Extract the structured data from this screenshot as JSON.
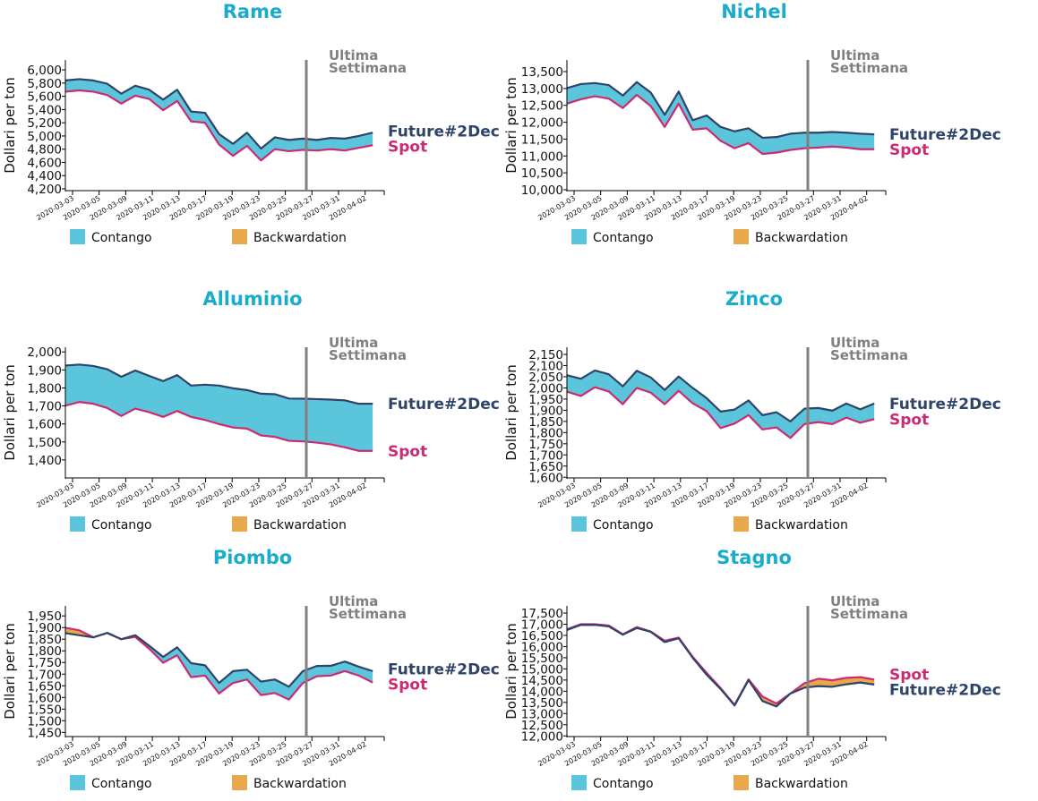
{
  "chart_data": [
    {
      "type": "area",
      "title": "Rame",
      "ylabel": "Dollari per ton",
      "ylim": [
        4173,
        6150
      ],
      "yticks": {
        "from": 4200,
        "to": 6000,
        "step": 200
      },
      "future": [
        5840,
        5860,
        5840,
        5790,
        5640,
        5760,
        5700,
        5550,
        5700,
        5370,
        5350,
        5030,
        4880,
        5050,
        4810,
        4980,
        4940,
        4960,
        4940,
        4970,
        4960,
        5000,
        5050
      ],
      "spot": [
        5670,
        5690,
        5670,
        5620,
        5490,
        5610,
        5560,
        5390,
        5530,
        5220,
        5200,
        4870,
        4700,
        4850,
        4630,
        4800,
        4770,
        4790,
        4780,
        4800,
        4780,
        4820,
        4860
      ]
    },
    {
      "type": "area",
      "title": "Nichel",
      "ylabel": "Dollari per ton",
      "ylim": [
        9973,
        13845
      ],
      "yticks": {
        "from": 10000,
        "to": 13500,
        "step": 500
      },
      "future": [
        13010,
        13130,
        13160,
        13100,
        12790,
        13190,
        12880,
        12220,
        12910,
        12060,
        12200,
        11860,
        11730,
        11820,
        11540,
        11560,
        11660,
        11690,
        11690,
        11710,
        11690,
        11660,
        11640
      ],
      "spot": [
        12550,
        12680,
        12770,
        12700,
        12420,
        12810,
        12480,
        11860,
        12550,
        11780,
        11820,
        11450,
        11230,
        11380,
        11060,
        11100,
        11180,
        11230,
        11250,
        11280,
        11250,
        11200,
        11200
      ]
    },
    {
      "type": "area",
      "title": "Alluminio",
      "ylabel": "Dollari per ton",
      "ylim": [
        1300,
        2026
      ],
      "yticks": {
        "from": 1400,
        "to": 2000,
        "step": 100
      },
      "future": [
        1924,
        1930,
        1922,
        1904,
        1862,
        1897,
        1867,
        1838,
        1871,
        1813,
        1818,
        1813,
        1798,
        1788,
        1768,
        1765,
        1741,
        1740,
        1738,
        1735,
        1731,
        1712,
        1712
      ],
      "spot": [
        1702,
        1722,
        1712,
        1688,
        1644,
        1685,
        1665,
        1639,
        1672,
        1639,
        1622,
        1599,
        1580,
        1574,
        1536,
        1528,
        1506,
        1503,
        1496,
        1486,
        1470,
        1450,
        1450
      ]
    },
    {
      "type": "area",
      "title": "Zinco",
      "ylabel": "Dollari per ton",
      "ylim": [
        1597,
        2182
      ],
      "yticks": {
        "from": 1600,
        "to": 2150,
        "step": 50
      },
      "future": [
        2057,
        2041,
        2078,
        2061,
        2007,
        2077,
        2047,
        1991,
        2051,
        2000,
        1954,
        1894,
        1903,
        1944,
        1878,
        1891,
        1850,
        1907,
        1910,
        1898,
        1930,
        1904,
        1930
      ],
      "spot": [
        1983,
        1964,
        2003,
        1984,
        1927,
        2000,
        1979,
        1927,
        1987,
        1931,
        1896,
        1820,
        1840,
        1878,
        1814,
        1823,
        1776,
        1838,
        1847,
        1838,
        1867,
        1844,
        1860
      ]
    },
    {
      "type": "area",
      "title": "Piombo",
      "ylabel": "Dollari per ton",
      "ylim": [
        1432,
        1993
      ],
      "yticks": {
        "from": 1450,
        "to": 1950,
        "step": 50
      },
      "future": [
        1876,
        1867,
        1858,
        1877,
        1850,
        1867,
        1822,
        1774,
        1815,
        1747,
        1738,
        1662,
        1713,
        1719,
        1668,
        1677,
        1646,
        1713,
        1735,
        1736,
        1754,
        1732,
        1713
      ],
      "spot": [
        1899,
        1888,
        1858,
        1877,
        1850,
        1860,
        1809,
        1749,
        1781,
        1687,
        1694,
        1617,
        1662,
        1677,
        1610,
        1619,
        1591,
        1662,
        1691,
        1694,
        1713,
        1694,
        1664
      ]
    },
    {
      "type": "area",
      "title": "Stagno",
      "ylabel": "Dollari per ton",
      "ylim": [
        11970,
        17820
      ],
      "yticks": {
        "from": 12000,
        "to": 17500,
        "step": 500
      },
      "future": [
        16740,
        16970,
        16970,
        16900,
        16530,
        16830,
        16660,
        16200,
        16370,
        15500,
        14740,
        14100,
        13360,
        14500,
        13560,
        13320,
        13900,
        14160,
        14230,
        14200,
        14310,
        14390,
        14300
      ],
      "spot": [
        16770,
        17000,
        17000,
        16940,
        16550,
        16870,
        16670,
        16260,
        16400,
        15540,
        14820,
        14140,
        13390,
        14530,
        13760,
        13450,
        13900,
        14360,
        14560,
        14490,
        14600,
        14630,
        14520
      ]
    }
  ],
  "dates": [
    "2020-03-03",
    "2020-03-04",
    "2020-03-05",
    "2020-03-06",
    "2020-03-09",
    "2020-03-10",
    "2020-03-11",
    "2020-03-12",
    "2020-03-13",
    "2020-03-16",
    "2020-03-17",
    "2020-03-18",
    "2020-03-19",
    "2020-03-20",
    "2020-03-23",
    "2020-03-24",
    "2020-03-25",
    "2020-03-26",
    "2020-03-27",
    "2020-03-30",
    "2020-03-31",
    "2020-04-01",
    "2020-04-02"
  ],
  "xticks": [
    "2020-03-03",
    "2020-03-05",
    "2020-03-09",
    "2020-03-11",
    "2020-03-13",
    "2020-03-17",
    "2020-03-19",
    "2020-03-23",
    "2020-03-25",
    "2020-03-27",
    "2020-03-31",
    "2020-04-02"
  ],
  "series_labels": {
    "future": "Future#2Dec",
    "spot": "Spot"
  },
  "annotation": {
    "line1": "Ultima",
    "line2": "Settimana",
    "marker_between": [
      "2020-03-26",
      "2020-03-27"
    ]
  },
  "legend": {
    "contango": "Contango",
    "backwardation": "Backwardation",
    "position": "bottom"
  },
  "colors": {
    "title": "#1aaccc",
    "future": "#2e4468",
    "spot": "#cc2a72",
    "contango": "#5bc5db",
    "backwardation": "#e8a84b",
    "annotation": "#808080"
  }
}
